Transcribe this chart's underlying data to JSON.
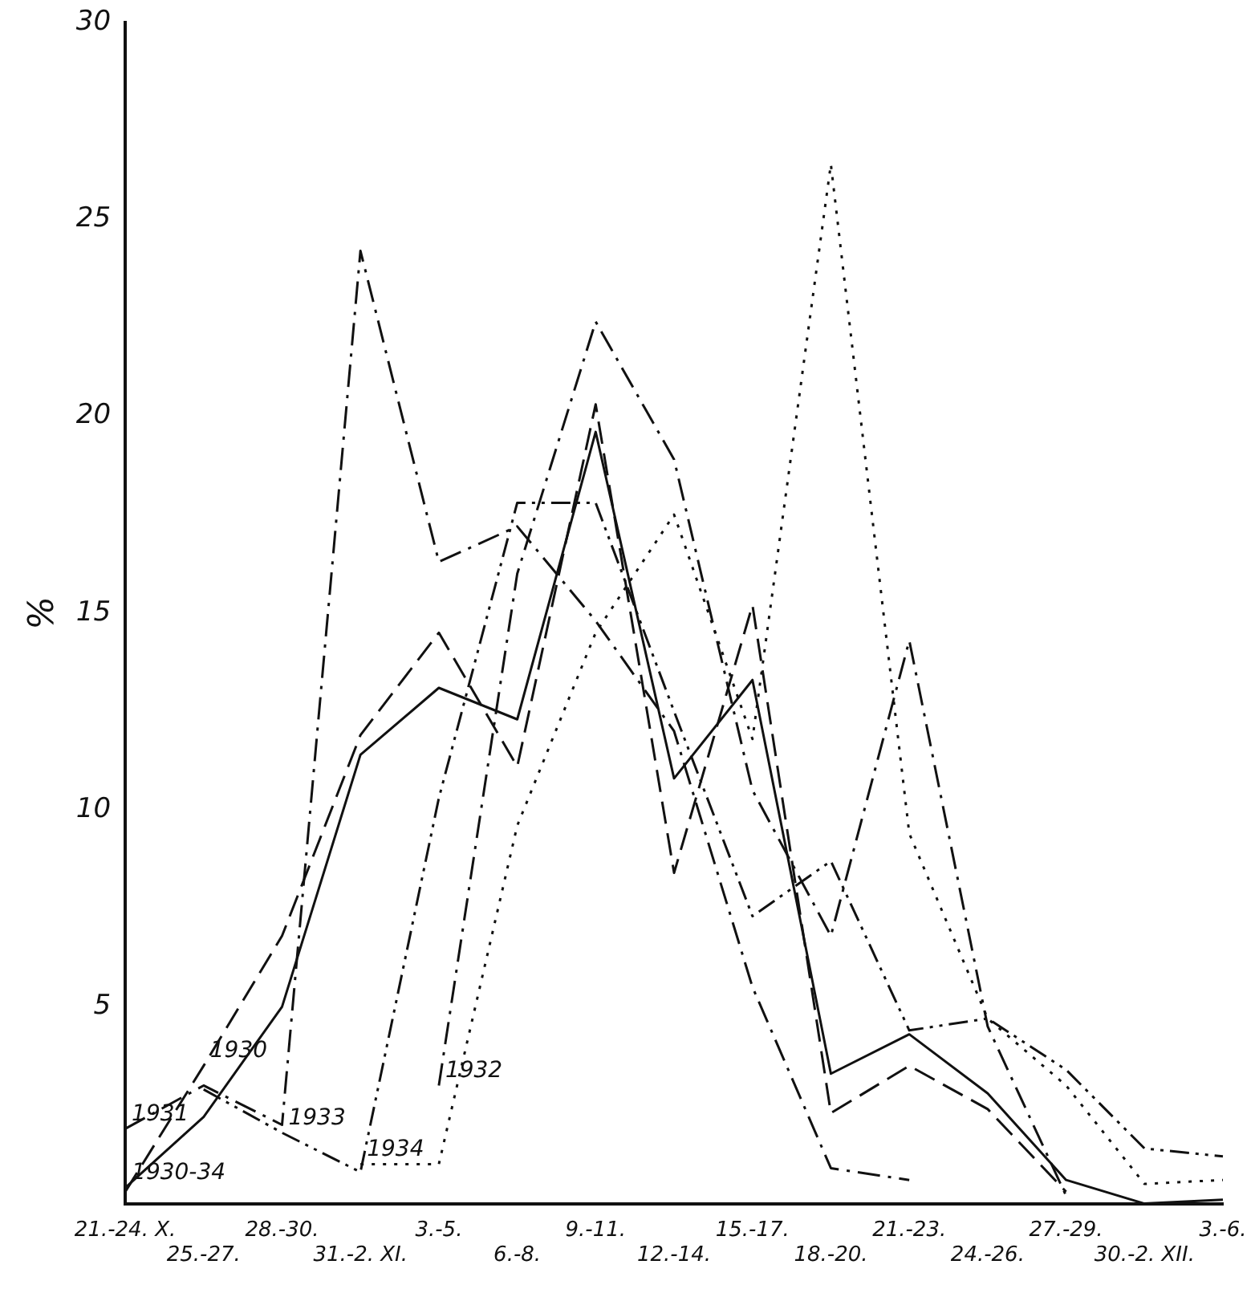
{
  "chart_data": {
    "type": "line",
    "ylabel": "%",
    "categories": [
      "21.-24. X.",
      "25.-27.",
      "28.-30.",
      "31.-2. XI.",
      "3.-5.",
      "6.-8.",
      "9.-11.",
      "12.-14.",
      "15.-17.",
      "18.-20.",
      "21.-23.",
      "24.-26.",
      "27.-29.",
      "30.-2. XII.",
      "3.-6."
    ],
    "series": [
      {
        "name": "1930-34",
        "color": "#111111",
        "line_style": "solid",
        "values": [
          0.4,
          2.2,
          5.0,
          11.4,
          13.1,
          12.3,
          19.6,
          10.8,
          13.3,
          3.3,
          4.3,
          2.8,
          0.6,
          0,
          0.1
        ]
      },
      {
        "name": "1930",
        "color": "#111111",
        "line_style": "dashed",
        "values": [
          0.3,
          3.5,
          6.8,
          11.9,
          14.5,
          11.1,
          20.3,
          8.4,
          15.2,
          2.3,
          3.5,
          2.4,
          0.3,
          null,
          null
        ]
      },
      {
        "name": "1931",
        "color": "#111111",
        "line_style": "dashdot",
        "values": [
          1.9,
          3.0,
          2.0,
          24.2,
          16.3,
          17.2,
          14.8,
          12.0,
          5.5,
          0.9,
          0.6,
          null,
          null,
          null,
          null
        ]
      },
      {
        "name": "1933",
        "color": "#111111",
        "line_style": "dashdotdot",
        "values": [
          null,
          2.9,
          1.8,
          0.8,
          10.3,
          17.8,
          17.8,
          12.5,
          7.3,
          8.7,
          4.4,
          4.7,
          3.4,
          1.4,
          1.2
        ]
      },
      {
        "name": "1932",
        "color": "#111111",
        "line_style": "dashdot",
        "values": [
          null,
          null,
          null,
          null,
          3.0,
          16.0,
          22.4,
          18.9,
          10.5,
          6.8,
          14.3,
          4.5,
          0.2,
          null,
          null
        ]
      },
      {
        "name": "1934",
        "color": "#111111",
        "line_style": "dotted",
        "values": [
          null,
          null,
          null,
          1.0,
          1.0,
          9.6,
          14.5,
          17.5,
          11.8,
          26.4,
          9.4,
          4.7,
          3.0,
          0.5,
          0.6
        ]
      }
    ],
    "ylim": [
      0,
      30
    ],
    "yticks": [
      5,
      10,
      15,
      20,
      25,
      30
    ],
    "grid": false,
    "legend": false,
    "marker": "none"
  }
}
